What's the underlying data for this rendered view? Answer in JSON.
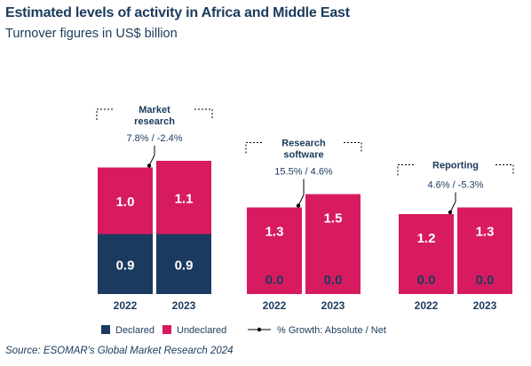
{
  "header": {
    "title": "Estimated levels of activity in Africa and Middle East",
    "subtitle": "Turnover figures in US$ billion"
  },
  "source": "Source: ESOMAR's Global Market Research 2024",
  "chart_data": {
    "type": "bar",
    "stacked": true,
    "groups": [
      {
        "label_lines": [
          "Market",
          "research"
        ],
        "growth": "7.8% / -2.4%",
        "categories": [
          "2022",
          "2023"
        ],
        "declared": [
          0.9,
          0.9
        ],
        "undeclared": [
          1.0,
          1.1
        ]
      },
      {
        "label_lines": [
          "Research",
          "software"
        ],
        "growth": "15.5% / 4.6%",
        "categories": [
          "2022",
          "2023"
        ],
        "declared": [
          0.0,
          0.0
        ],
        "undeclared": [
          1.3,
          1.5
        ]
      },
      {
        "label_lines": [
          "Reporting"
        ],
        "growth": "4.6% / -5.3%",
        "categories": [
          "2022",
          "2023"
        ],
        "declared": [
          0.0,
          0.0
        ],
        "undeclared": [
          1.2,
          1.3
        ]
      }
    ],
    "series": [
      {
        "name": "Declared",
        "color": "#1b3a5f"
      },
      {
        "name": "Undeclared",
        "color": "#d81b60"
      }
    ],
    "growth_legend": "% Growth: Absolute / Net",
    "label_color": "#ffffff",
    "axis_color": "#1a3a5c"
  }
}
